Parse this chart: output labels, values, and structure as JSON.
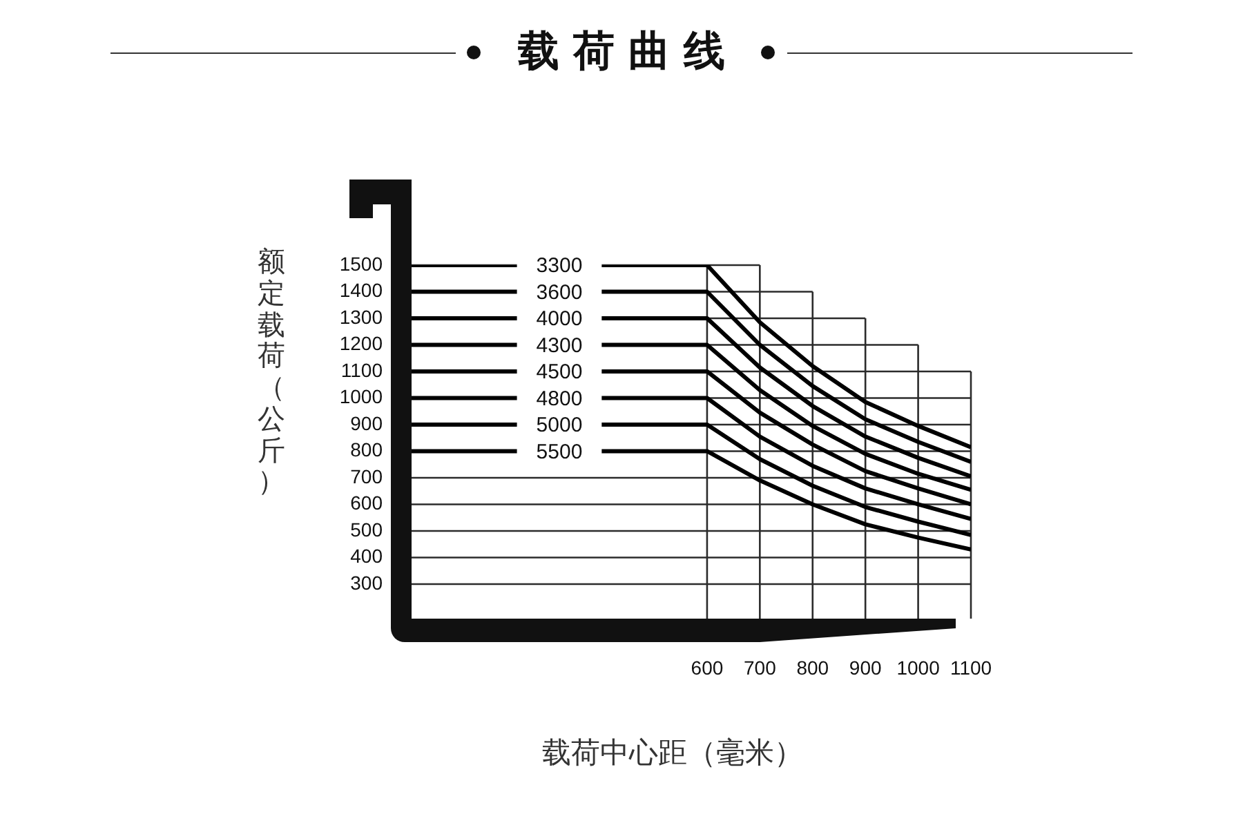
{
  "chart_data": {
    "type": "line",
    "title": "载荷曲线",
    "xlabel": "载荷中心距（毫米）",
    "ylabel": "额定载荷（公斤）",
    "x": [
      40,
      600,
      700,
      800,
      900,
      1000,
      1100
    ],
    "series": [
      {
        "name": "3300",
        "color": "#000000",
        "values": [
          1500,
          1500,
          1285,
          1120,
          985,
          895,
          815
        ]
      },
      {
        "name": "3600",
        "color": "#000000",
        "values": [
          1400,
          1400,
          1200,
          1045,
          920,
          835,
          760
        ]
      },
      {
        "name": "4000",
        "color": "#000000",
        "values": [
          1300,
          1300,
          1115,
          970,
          855,
          775,
          705
        ]
      },
      {
        "name": "4300",
        "color": "#000000",
        "values": [
          1200,
          1200,
          1030,
          895,
          790,
          715,
          655
        ]
      },
      {
        "name": "4500",
        "color": "#000000",
        "values": [
          1100,
          1100,
          945,
          825,
          725,
          660,
          600
        ]
      },
      {
        "name": "4800",
        "color": "#000000",
        "values": [
          1000,
          1000,
          855,
          745,
          660,
          600,
          545
        ]
      },
      {
        "name": "5000",
        "color": "#000000",
        "values": [
          900,
          900,
          770,
          670,
          590,
          535,
          485
        ]
      },
      {
        "name": "5500",
        "color": "#000000",
        "values": [
          800,
          800,
          690,
          600,
          525,
          475,
          430
        ]
      }
    ],
    "xlim": [
      40,
      1100
    ],
    "xticks": [
      600,
      700,
      800,
      900,
      1000,
      1100
    ],
    "ylim": [
      170,
      1500
    ],
    "yticks": [
      300,
      400,
      500,
      600,
      700,
      800,
      900,
      1000,
      1100,
      1200,
      1300,
      1400,
      1500
    ],
    "grid": true,
    "marker": "none",
    "line_style": "solid"
  }
}
